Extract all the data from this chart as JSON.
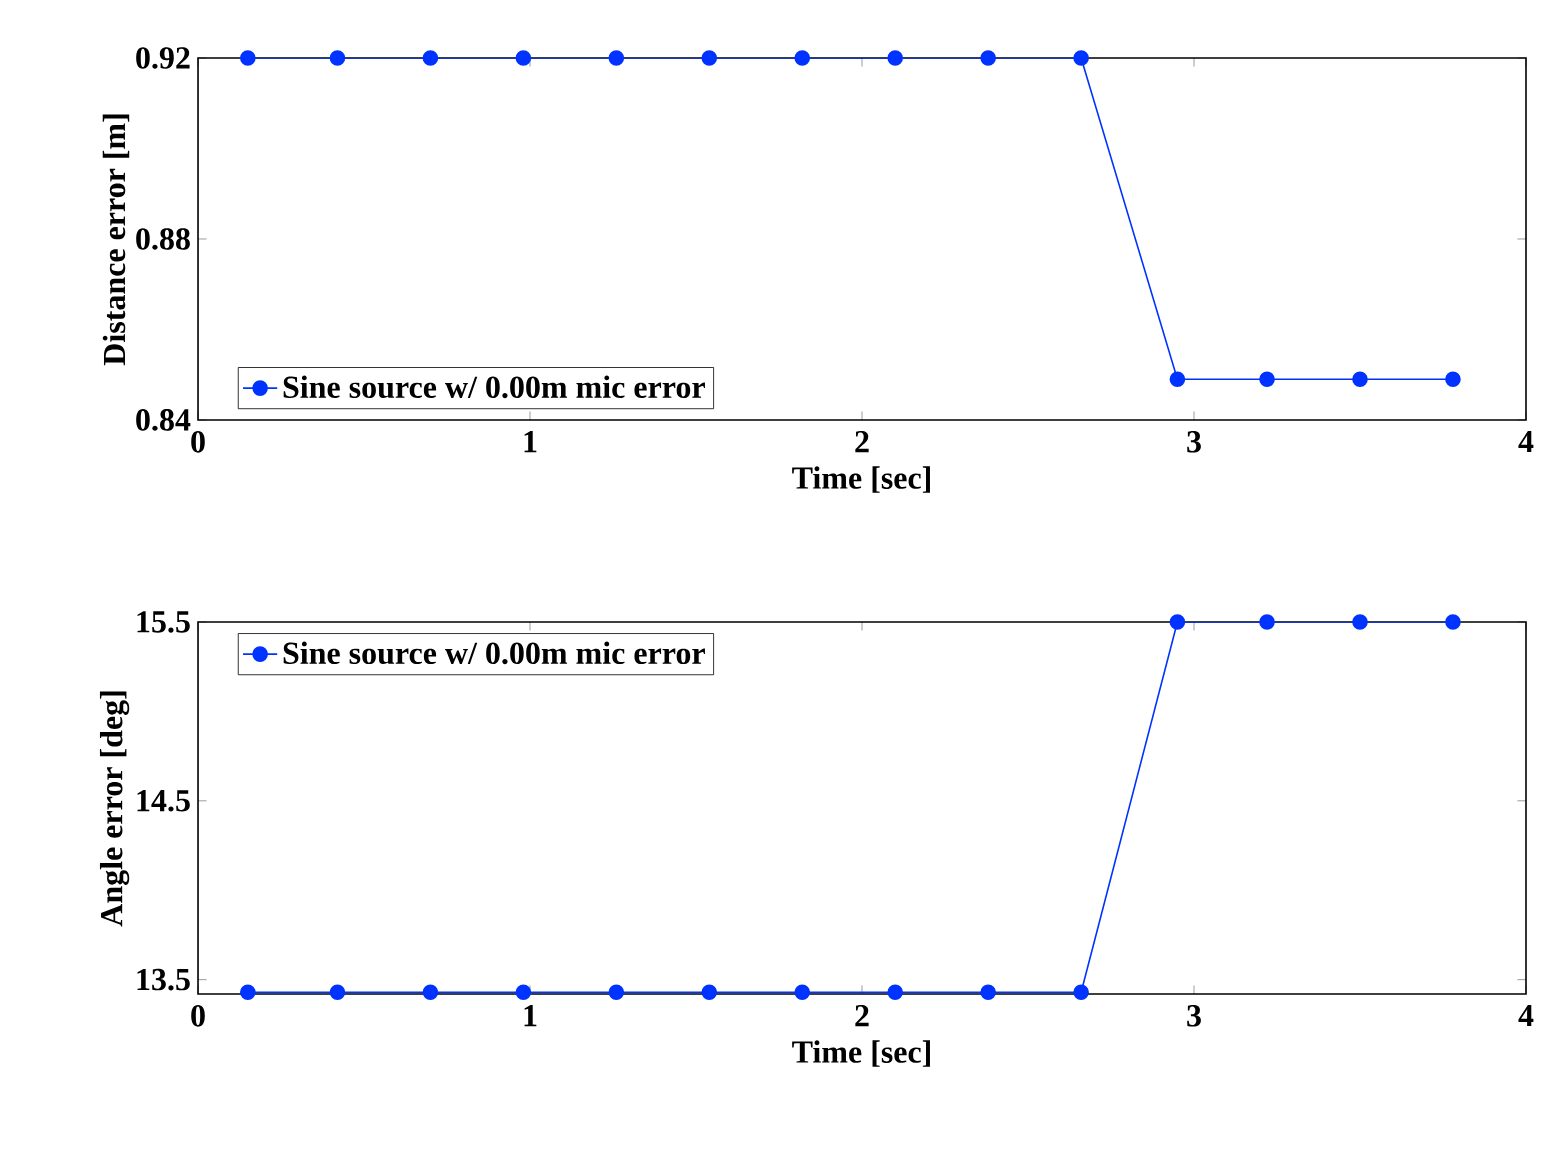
{
  "chart_data": [
    {
      "type": "line",
      "xlabel": "Time [sec]",
      "ylabel": "Distance error [m]",
      "x": [
        0.15,
        0.42,
        0.7,
        0.98,
        1.26,
        1.54,
        1.82,
        2.1,
        2.38,
        2.66,
        2.95,
        3.22,
        3.5,
        3.78
      ],
      "series": [
        {
          "name": "Sine source w/ 0.00m mic error",
          "color": "#0033ff",
          "values": [
            0.92,
            0.92,
            0.92,
            0.92,
            0.92,
            0.92,
            0.92,
            0.92,
            0.92,
            0.92,
            0.849,
            0.849,
            0.849,
            0.849
          ]
        }
      ],
      "xlim": [
        0,
        4
      ],
      "ylim": [
        0.84,
        0.92
      ],
      "xticks": [
        0,
        1,
        2,
        3,
        4
      ],
      "yticks": [
        0.84,
        0.88,
        0.92
      ],
      "legend": "bottom left",
      "marker": "circle",
      "line_style": "solid",
      "grid": false
    },
    {
      "type": "line",
      "xlabel": "Time [sec]",
      "ylabel": "Angle error [deg]",
      "x": [
        0.15,
        0.42,
        0.7,
        0.98,
        1.26,
        1.54,
        1.82,
        2.1,
        2.38,
        2.66,
        2.95,
        3.22,
        3.5,
        3.78
      ],
      "series": [
        {
          "name": "Sine source w/ 0.00m mic error",
          "color": "#0033ff",
          "values": [
            13.43,
            13.43,
            13.43,
            13.43,
            13.43,
            13.43,
            13.43,
            13.43,
            13.43,
            13.43,
            15.5,
            15.5,
            15.5,
            15.5
          ]
        }
      ],
      "xlim": [
        0,
        4
      ],
      "ylim": [
        13.42,
        15.5
      ],
      "xticks": [
        0,
        1,
        2,
        3,
        4
      ],
      "yticks": [
        13.5,
        14.5,
        15.5
      ],
      "legend": "top left",
      "marker": "circle",
      "line_style": "solid",
      "grid": false
    }
  ]
}
